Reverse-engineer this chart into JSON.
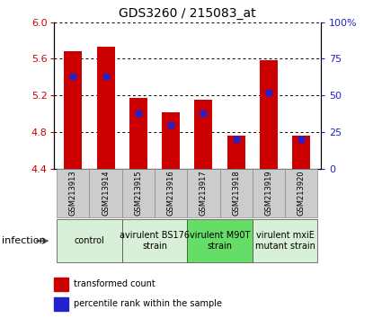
{
  "title": "GDS3260 / 215083_at",
  "samples": [
    "GSM213913",
    "GSM213914",
    "GSM213915",
    "GSM213916",
    "GSM213917",
    "GSM213918",
    "GSM213919",
    "GSM213920"
  ],
  "transformed_counts": [
    5.68,
    5.73,
    5.17,
    5.02,
    5.15,
    4.76,
    5.59,
    4.76
  ],
  "percentile_ranks": [
    63,
    63,
    38,
    30,
    38,
    20,
    52,
    20
  ],
  "ylim_left": [
    4.4,
    6.0
  ],
  "ylim_right": [
    0,
    100
  ],
  "yticks_left": [
    4.4,
    4.8,
    5.2,
    5.6,
    6.0
  ],
  "yticks_right": [
    0,
    25,
    50,
    75,
    100
  ],
  "bar_color": "#cc0000",
  "dot_color": "#2222cc",
  "bar_bottom": 4.4,
  "groups": [
    {
      "label": "control",
      "start": 0,
      "end": 2,
      "color": "#d8f0d8"
    },
    {
      "label": "avirulent BS176\nstrain",
      "start": 2,
      "end": 4,
      "color": "#d8f0d8"
    },
    {
      "label": "virulent M90T\nstrain",
      "start": 4,
      "end": 6,
      "color": "#66dd66"
    },
    {
      "label": "virulent mxiE\nmutant strain",
      "start": 6,
      "end": 8,
      "color": "#d8f0d8"
    }
  ],
  "xlabel_infection": "infection",
  "legend_red": "transformed count",
  "legend_blue": "percentile rank within the sample",
  "tick_color_left": "#cc0000",
  "tick_color_right": "#2222cc",
  "xticklabel_bg": "#cccccc",
  "bar_width": 0.55,
  "dot_size": 5,
  "title_fontsize": 10,
  "axis_fontsize": 8,
  "sample_fontsize": 6,
  "group_fontsize": 7,
  "legend_fontsize": 7
}
